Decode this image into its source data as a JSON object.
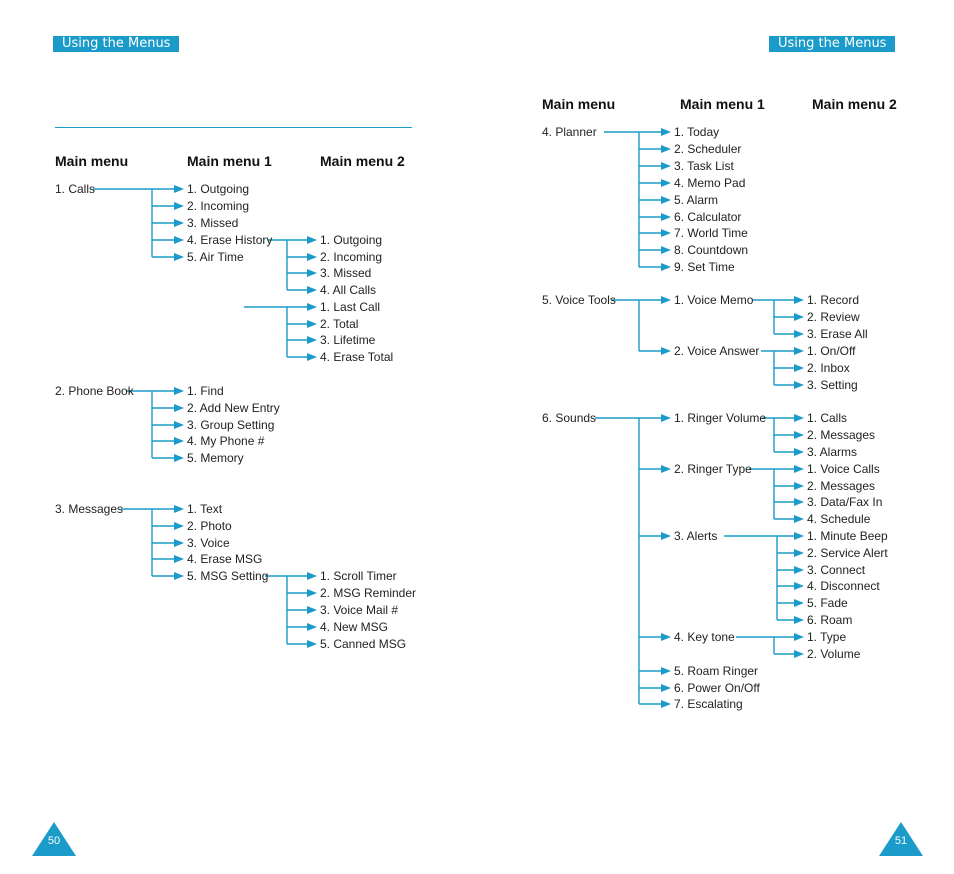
{
  "header_tag": "Using the Menus",
  "columns": {
    "main": "Main menu",
    "sub1": "Main menu 1",
    "sub2": "Main menu 2"
  },
  "page_numbers": {
    "left": "50",
    "right": "51"
  },
  "colors": {
    "accent": "#1a9bc9"
  },
  "menus": {
    "calls": {
      "label": "1. Calls",
      "items": [
        "1. Outgoing",
        "2. Incoming",
        "3. Missed",
        "4. Erase History",
        "5. Air Time"
      ],
      "erase_history": [
        "1. Outgoing",
        "2. Incoming",
        "3. Missed",
        "4. All Calls"
      ],
      "air_time": [
        "1. Last Call",
        "2. Total",
        "3. Lifetime",
        "4. Erase Total"
      ]
    },
    "phone_book": {
      "label": "2. Phone Book",
      "items": [
        "1. Find",
        "2. Add New Entry",
        "3. Group Setting",
        "4. My Phone #",
        "5. Memory"
      ]
    },
    "messages": {
      "label": "3. Messages",
      "items": [
        "1. Text",
        "2. Photo",
        "3. Voice",
        "4. Erase MSG",
        "5. MSG Setting"
      ],
      "msg_setting": [
        "1. Scroll Timer",
        "2. MSG Reminder",
        "3. Voice Mail #",
        "4. New MSG",
        "5. Canned MSG"
      ]
    },
    "planner": {
      "label": "4. Planner",
      "items": [
        "1. Today",
        "2. Scheduler",
        "3. Task List",
        "4. Memo Pad",
        "5. Alarm",
        "6. Calculator",
        "7. World Time",
        "8. Countdown",
        "9. Set Time"
      ]
    },
    "voice_tools": {
      "label": "5. Voice Tools",
      "items": [
        "1. Voice Memo",
        "2. Voice Answer"
      ],
      "voice_memo": [
        "1. Record",
        "2. Review",
        "3. Erase All"
      ],
      "voice_answer": [
        "1. On/Off",
        "2. Inbox",
        "3. Setting"
      ]
    },
    "sounds": {
      "label": "6. Sounds",
      "items": [
        "1. Ringer Volume",
        "2. Ringer Type",
        "3. Alerts",
        "4. Key tone",
        "5. Roam Ringer",
        "6. Power On/Off",
        "7. Escalating"
      ],
      "ringer_volume": [
        "1. Calls",
        "2. Messages",
        "3. Alarms"
      ],
      "ringer_type": [
        "1. Voice Calls",
        "2. Messages",
        "3. Data/Fax In",
        "4. Schedule"
      ],
      "alerts": [
        "1. Minute Beep",
        "2. Service Alert",
        "3. Connect",
        "4. Disconnect",
        "5. Fade",
        "6. Roam"
      ],
      "key_tone": [
        "1. Type",
        "2. Volume"
      ]
    }
  }
}
